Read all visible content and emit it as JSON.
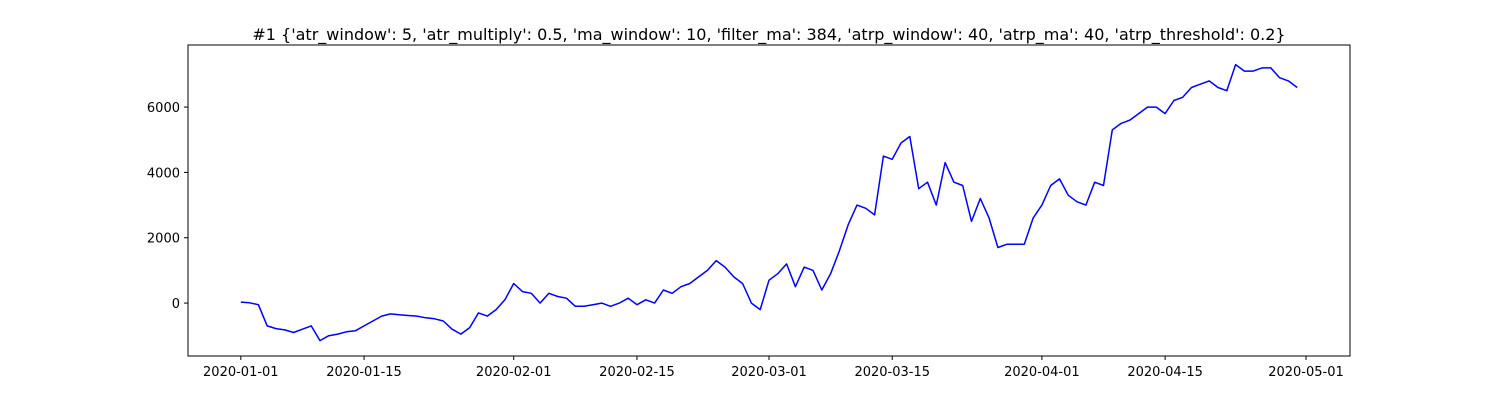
{
  "chart_data": {
    "type": "line",
    "title": "#1 {'atr_window': 5, 'atr_multiply': 0.5, 'ma_window': 10, 'filter_ma': 384, 'atrp_window': 40, 'atrp_ma': 40, 'atrp_threshold': 0.2}",
    "x": [
      "2020-01-01",
      "2020-01-02",
      "2020-01-03",
      "2020-01-04",
      "2020-01-05",
      "2020-01-06",
      "2020-01-07",
      "2020-01-08",
      "2020-01-09",
      "2020-01-10",
      "2020-01-11",
      "2020-01-12",
      "2020-01-13",
      "2020-01-14",
      "2020-01-15",
      "2020-01-16",
      "2020-01-17",
      "2020-01-18",
      "2020-01-19",
      "2020-01-20",
      "2020-01-21",
      "2020-01-22",
      "2020-01-23",
      "2020-01-24",
      "2020-01-25",
      "2020-01-26",
      "2020-01-27",
      "2020-01-28",
      "2020-01-29",
      "2020-01-30",
      "2020-01-31",
      "2020-02-01",
      "2020-02-02",
      "2020-02-03",
      "2020-02-04",
      "2020-02-05",
      "2020-02-06",
      "2020-02-07",
      "2020-02-08",
      "2020-02-09",
      "2020-02-10",
      "2020-02-11",
      "2020-02-12",
      "2020-02-13",
      "2020-02-14",
      "2020-02-15",
      "2020-02-16",
      "2020-02-17",
      "2020-02-18",
      "2020-02-19",
      "2020-02-20",
      "2020-02-21",
      "2020-02-22",
      "2020-02-23",
      "2020-02-24",
      "2020-02-25",
      "2020-02-26",
      "2020-02-27",
      "2020-02-28",
      "2020-02-29",
      "2020-03-01",
      "2020-03-02",
      "2020-03-03",
      "2020-03-04",
      "2020-03-05",
      "2020-03-06",
      "2020-03-07",
      "2020-03-08",
      "2020-03-09",
      "2020-03-10",
      "2020-03-11",
      "2020-03-12",
      "2020-03-13",
      "2020-03-14",
      "2020-03-15",
      "2020-03-16",
      "2020-03-17",
      "2020-03-18",
      "2020-03-19",
      "2020-03-20",
      "2020-03-21",
      "2020-03-22",
      "2020-03-23",
      "2020-03-24",
      "2020-03-25",
      "2020-03-26",
      "2020-03-27",
      "2020-03-28",
      "2020-03-29",
      "2020-03-30",
      "2020-03-31",
      "2020-04-01",
      "2020-04-02",
      "2020-04-03",
      "2020-04-04",
      "2020-04-05",
      "2020-04-06",
      "2020-04-07",
      "2020-04-08",
      "2020-04-09",
      "2020-04-10",
      "2020-04-11",
      "2020-04-12",
      "2020-04-13",
      "2020-04-14",
      "2020-04-15",
      "2020-04-16",
      "2020-04-17",
      "2020-04-18",
      "2020-04-19",
      "2020-04-20",
      "2020-04-21",
      "2020-04-22",
      "2020-04-23",
      "2020-04-24",
      "2020-04-25",
      "2020-04-26",
      "2020-04-27",
      "2020-04-28",
      "2020-04-29",
      "2020-04-30"
    ],
    "series": [
      {
        "color": "#0000ff",
        "values": [
          30,
          10,
          -50,
          -700,
          -780,
          -820,
          -900,
          -800,
          -700,
          -1150,
          -1000,
          -950,
          -880,
          -850,
          -700,
          -550,
          -400,
          -330,
          -360,
          -380,
          -400,
          -450,
          -480,
          -550,
          -800,
          -950,
          -750,
          -300,
          -400,
          -200,
          100,
          600,
          350,
          300,
          0,
          300,
          200,
          150,
          -100,
          -100,
          -50,
          0,
          -100,
          0,
          150,
          -50,
          100,
          0,
          400,
          300,
          500,
          600,
          800,
          1000,
          1300,
          1100,
          800,
          600,
          0,
          -200,
          700,
          900,
          1200,
          500,
          1100,
          1000,
          400,
          900,
          1600,
          2400,
          3000,
          2900,
          2700,
          4500,
          4400,
          4900,
          5100,
          3500,
          3700,
          3000,
          4300,
          3700,
          3600,
          2500,
          3200,
          2600,
          1700,
          1800,
          1800,
          1800,
          2600,
          3000,
          3600,
          3800,
          3300,
          3100,
          3000,
          3700,
          3600,
          5300,
          5500,
          5600,
          5800,
          6000,
          6000,
          5800,
          6200,
          6300,
          6600,
          6700,
          6800,
          6600,
          6500,
          7300,
          7100,
          7100,
          7200,
          7200,
          6900,
          6800,
          6600
        ]
      }
    ],
    "xlim": [
      "2019-12-26",
      "2020-05-06"
    ],
    "xticks": [
      "2020-01-01",
      "2020-01-15",
      "2020-02-01",
      "2020-02-15",
      "2020-03-01",
      "2020-03-15",
      "2020-04-01",
      "2020-04-15",
      "2020-05-01"
    ],
    "ylim": [
      -1620,
      7900
    ],
    "yticks": [
      0,
      2000,
      4000,
      6000
    ]
  }
}
